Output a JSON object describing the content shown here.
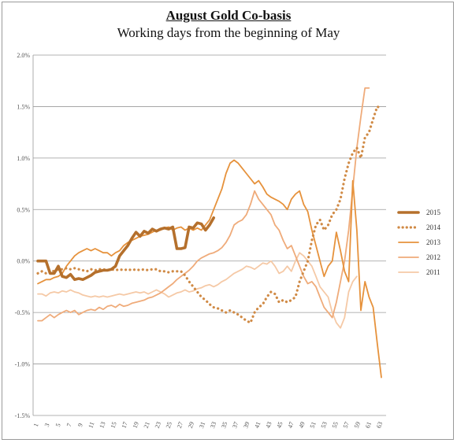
{
  "chart_data": {
    "type": "line",
    "title": "August Gold Co-basis",
    "subtitle": "Working days from the beginning of May",
    "xlabel": "",
    "ylabel": "",
    "ylim": [
      -0.015,
      0.02
    ],
    "y_ticks": [
      "2.0%",
      "1.5%",
      "1.0%",
      "0.5%",
      "0.0%",
      "-0.5%",
      "-1.0%",
      "-1.5%"
    ],
    "y_tick_values": [
      0.02,
      0.015,
      0.01,
      0.005,
      0.0,
      -0.005,
      -0.01,
      -0.015
    ],
    "x_range": [
      1,
      63
    ],
    "grid": "horizontal",
    "legend_position": "right",
    "series": [
      {
        "name": "2015",
        "color": "#b5702c",
        "style": "thick-solid",
        "values": [
          0.0,
          0.0,
          0.0,
          -0.0012,
          -0.0012,
          -0.0005,
          -0.0015,
          -0.0016,
          -0.0013,
          -0.0018,
          -0.0017,
          -0.0018,
          -0.0016,
          -0.0014,
          -0.0011,
          -0.001,
          -0.0009,
          -0.0009,
          -0.0008,
          -0.0005,
          0.0005,
          0.001,
          0.0015,
          0.0022,
          0.0028,
          0.0024,
          0.0029,
          0.0027,
          0.0031,
          0.0029,
          0.0031,
          0.0032,
          0.0031,
          0.0033,
          0.0012,
          0.0012,
          0.0013,
          0.0033,
          0.0032,
          0.0037,
          0.0036,
          0.003,
          0.0035,
          0.0042
        ]
      },
      {
        "name": "2014",
        "color": "#d08a45",
        "style": "dotted",
        "values": [
          -0.0012,
          -0.001,
          -0.0012,
          -0.0009,
          -0.001,
          -0.0008,
          -0.0008,
          -0.0007,
          -0.0008,
          -0.0007,
          -0.0008,
          -0.0009,
          -0.001,
          -0.0008,
          -0.0009,
          -0.0008,
          -0.0008,
          -0.0009,
          -0.0008,
          -0.0009,
          -0.0008,
          -0.0009,
          -0.0008,
          -0.0009,
          -0.0008,
          -0.0009,
          -0.0008,
          -0.0009,
          -0.0008,
          -0.0008,
          -0.001,
          -0.001,
          -0.0011,
          -0.001,
          -0.001,
          -0.001,
          -0.0014,
          -0.002,
          -0.0025,
          -0.003,
          -0.0035,
          -0.0038,
          -0.0042,
          -0.0045,
          -0.0046,
          -0.0048,
          -0.005,
          -0.0048,
          -0.005,
          -0.0052,
          -0.0055,
          -0.0058,
          -0.006,
          -0.005,
          -0.0045,
          -0.0042,
          -0.0035,
          -0.003,
          -0.0032,
          -0.004,
          -0.0038,
          -0.004,
          -0.0038,
          -0.0035,
          -0.002,
          -0.001,
          0.0,
          0.002,
          0.0035,
          0.004,
          0.003,
          0.0035,
          0.0045,
          0.005,
          0.006,
          0.008,
          0.0095,
          0.0105,
          0.011,
          0.01,
          0.012,
          0.0125,
          0.0138,
          0.015,
          0.0148
        ]
      },
      {
        "name": "2013",
        "color": "#e6923c",
        "style": "solid",
        "values": [
          -0.0022,
          -0.002,
          -0.0018,
          -0.0018,
          -0.0016,
          -0.0015,
          -0.0012,
          -0.0005,
          0.0,
          0.0005,
          0.0008,
          0.001,
          0.0012,
          0.001,
          0.0012,
          0.001,
          0.0008,
          0.0008,
          0.0005,
          0.0008,
          0.001,
          0.0015,
          0.0018,
          0.002,
          0.0022,
          0.0024,
          0.0025,
          0.0026,
          0.0028,
          0.003,
          0.003,
          0.0032,
          0.0033,
          0.003,
          0.0032,
          0.0033,
          0.003,
          0.0032,
          0.003,
          0.0032,
          0.003,
          0.0035,
          0.004,
          0.005,
          0.006,
          0.007,
          0.0085,
          0.0095,
          0.0098,
          0.0095,
          0.009,
          0.0085,
          0.008,
          0.0075,
          0.0078,
          0.0072,
          0.0065,
          0.0062,
          0.006,
          0.0058,
          0.0055,
          0.005,
          0.006,
          0.0065,
          0.0068,
          0.0055,
          0.0048,
          0.003,
          0.0015,
          0.0,
          -0.0015,
          -0.0005,
          0.0,
          0.0028,
          0.001,
          -0.001,
          -0.002,
          0.0078,
          0.003,
          -0.0048,
          -0.002,
          -0.0035,
          -0.0045,
          -0.008,
          -0.0113
        ]
      },
      {
        "name": "2012",
        "color": "#efab7a",
        "style": "solid",
        "values": [
          -0.0058,
          -0.0058,
          -0.0055,
          -0.0052,
          -0.0055,
          -0.0052,
          -0.005,
          -0.0048,
          -0.005,
          -0.0048,
          -0.0052,
          -0.005,
          -0.0048,
          -0.0047,
          -0.0048,
          -0.0045,
          -0.0047,
          -0.0044,
          -0.0043,
          -0.0045,
          -0.0042,
          -0.0044,
          -0.0043,
          -0.0041,
          -0.004,
          -0.0039,
          -0.0038,
          -0.0036,
          -0.0035,
          -0.0033,
          -0.0031,
          -0.0028,
          -0.0025,
          -0.0022,
          -0.0018,
          -0.0015,
          -0.0012,
          -0.0009,
          -0.0005,
          0.0,
          0.0003,
          0.0005,
          0.0007,
          0.0008,
          0.001,
          0.0013,
          0.0018,
          0.0025,
          0.0035,
          0.0038,
          0.004,
          0.0045,
          0.0055,
          0.0068,
          0.006,
          0.0055,
          0.005,
          0.0045,
          0.0035,
          0.003,
          0.002,
          0.0012,
          0.0015,
          0.0005,
          -0.0005,
          -0.0015,
          -0.0022,
          -0.002,
          -0.0025,
          -0.0035,
          -0.0045,
          -0.005,
          -0.0055,
          -0.004,
          -0.002,
          0.0,
          0.003,
          0.007,
          0.011,
          0.014,
          0.0168,
          0.0168
        ]
      },
      {
        "name": "2011",
        "color": "#f5c9a6",
        "style": "solid",
        "values": [
          -0.0032,
          -0.0032,
          -0.0034,
          -0.0031,
          -0.003,
          -0.0031,
          -0.0029,
          -0.003,
          -0.0028,
          -0.003,
          -0.0031,
          -0.0033,
          -0.0034,
          -0.0035,
          -0.0034,
          -0.0035,
          -0.0034,
          -0.0035,
          -0.0034,
          -0.0033,
          -0.0032,
          -0.0033,
          -0.0032,
          -0.0031,
          -0.003,
          -0.0031,
          -0.003,
          -0.0032,
          -0.003,
          -0.0028,
          -0.003,
          -0.0032,
          -0.0035,
          -0.0033,
          -0.0031,
          -0.003,
          -0.0028,
          -0.003,
          -0.0029,
          -0.0027,
          -0.0026,
          -0.0024,
          -0.0023,
          -0.0025,
          -0.0023,
          -0.002,
          -0.0018,
          -0.0015,
          -0.0012,
          -0.001,
          -0.0008,
          -0.0005,
          -0.0006,
          -0.0008,
          -0.0005,
          -0.0002,
          -0.0003,
          0.0,
          -0.0005,
          -0.0012,
          -0.001,
          -0.0005,
          -0.001,
          0.0,
          0.0008,
          0.0005,
          0.0,
          -0.0005,
          -0.0015,
          -0.0025,
          -0.003,
          -0.0035,
          -0.005,
          -0.006,
          -0.0065,
          -0.0055,
          -0.003,
          -0.002,
          -0.0015
        ]
      }
    ]
  },
  "legend": {
    "items": [
      "2015",
      "2014",
      "2013",
      "2012",
      "2011"
    ]
  }
}
